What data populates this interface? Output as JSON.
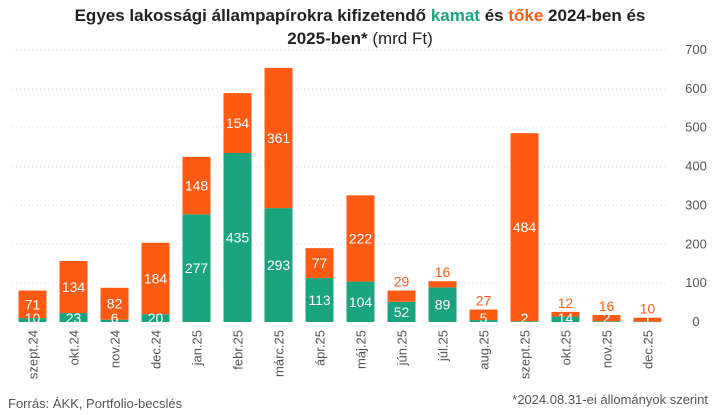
{
  "title": {
    "part1": "Egyes lakossági állampapírokra kifizetendő",
    "kamat": "kamat",
    "and": "és",
    "toke": "tőke",
    "part2": "2024-ben és 2025-ben*",
    "unit": "(mrd Ft)"
  },
  "footer": {
    "source": "Forrás: ÁKK, Portfolio-becslés",
    "note": "*2024.08.31-ei állományok szerint"
  },
  "colors": {
    "kamat": "#1aa37f",
    "toke": "#ff5a14",
    "grid": "#d9d9d9",
    "text": "#555555"
  },
  "chart_data": {
    "type": "bar",
    "stacked": true,
    "categories": [
      "szept.24",
      "okt.24",
      "nov.24",
      "dec.24",
      "jan.25",
      "febr.25",
      "márc.25",
      "ápr.25",
      "máj.25",
      "jún.25",
      "júl.25",
      "aug.25",
      "szept.25",
      "okt.25",
      "nov.25",
      "dec.25"
    ],
    "series": [
      {
        "name": "kamat",
        "values": [
          10,
          23,
          6,
          20,
          277,
          435,
          293,
          113,
          104,
          52,
          89,
          5,
          2,
          14,
          2,
          1
        ]
      },
      {
        "name": "tőke",
        "values": [
          71,
          134,
          82,
          184,
          148,
          154,
          361,
          77,
          222,
          29,
          16,
          27,
          484,
          12,
          16,
          10
        ]
      }
    ],
    "yaxis_ticks": [
      "0",
      "100",
      "200",
      "300",
      "400",
      "500",
      "600",
      "700"
    ],
    "ylim": [
      0,
      700
    ],
    "yaxis_side": "right",
    "grid": true
  }
}
